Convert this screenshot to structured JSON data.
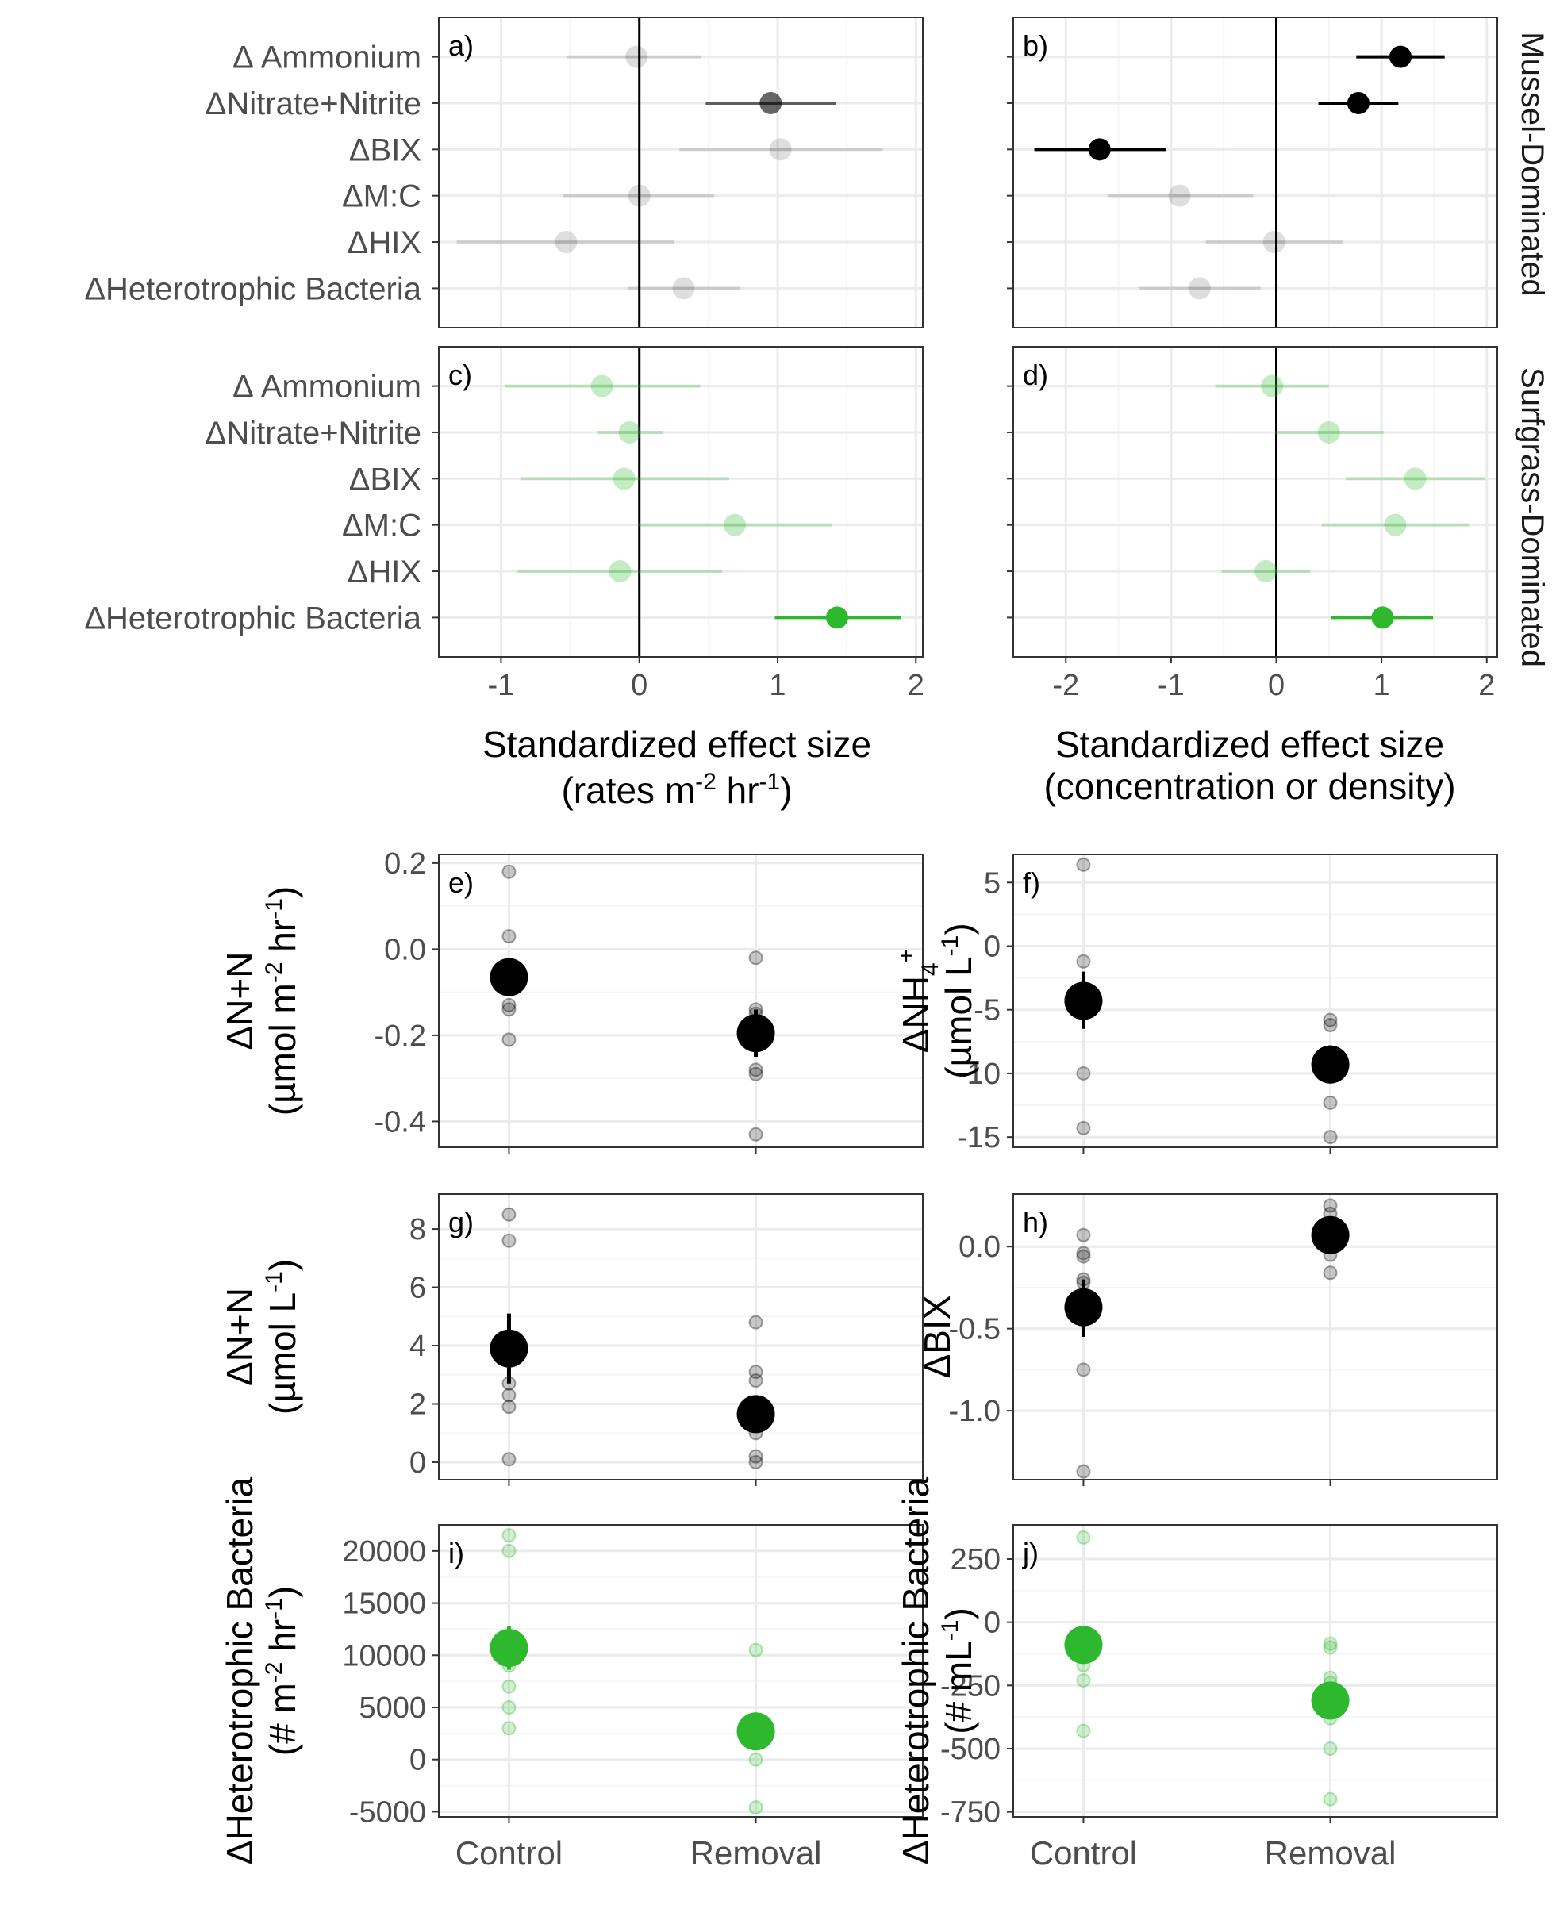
{
  "colors": {
    "mussel": "#000000",
    "surfgrass": "#2db82d",
    "axis_text": "#4d4d4d",
    "grid_major": "#ebebeb",
    "grid_minor": "#f5f5f5"
  },
  "strip_labels": [
    "Mussel-Dominated",
    "Surfgrass-Dominated"
  ],
  "forest_xlabels": {
    "left": {
      "line1": "Standardized effect size",
      "line2_pre": "(rates m",
      "sup1": "-2",
      "mid": " hr",
      "sup2": "-1",
      "post": ")"
    },
    "right": {
      "line1": "Standardized effect size",
      "line2": "(concentration or density)"
    }
  },
  "treatment_labels": [
    "Control",
    "Removal"
  ],
  "chart_data": [
    {
      "panel": "a)",
      "type": "scatter",
      "kind": "forest",
      "group": "Mussel-Dominated",
      "categories": [
        "Δ Ammonium",
        "ΔNitrate+Nitrite",
        "ΔBIX",
        "ΔM:C",
        "ΔHIX",
        "ΔHeterotrophic Bacteria"
      ],
      "xlim": [
        -1.45,
        2.05
      ],
      "xticks": [
        -1,
        0,
        1,
        2
      ],
      "values": [
        -0.02,
        0.95,
        1.02,
        0.0,
        -0.53,
        0.32
      ],
      "ci_low": [
        -0.52,
        0.48,
        0.29,
        -0.55,
        -1.32,
        -0.08
      ],
      "ci_high": [
        0.45,
        1.42,
        1.76,
        0.54,
        0.25,
        0.73
      ],
      "significant": [
        false,
        true,
        false,
        false,
        false,
        false
      ],
      "strength": [
        0.13,
        0.6,
        0.13,
        0.13,
        0.13,
        0.13
      ]
    },
    {
      "panel": "b)",
      "type": "scatter",
      "kind": "forest",
      "group": "Mussel-Dominated",
      "categories": [
        "Δ Ammonium",
        "ΔNitrate+Nitrite",
        "ΔBIX",
        "ΔM:C",
        "ΔHIX",
        "ΔHeterotrophic Bacteria"
      ],
      "xlim": [
        -2.5,
        2.1
      ],
      "xticks": [
        -2,
        -1,
        0,
        1,
        2
      ],
      "values": [
        1.18,
        0.78,
        -1.68,
        -0.92,
        -0.02,
        -0.73
      ],
      "ci_low": [
        0.76,
        0.4,
        -2.3,
        -1.6,
        -0.67,
        -1.3
      ],
      "ci_high": [
        1.6,
        1.16,
        -1.05,
        -0.22,
        0.63,
        -0.15
      ],
      "significant": [
        true,
        true,
        true,
        false,
        false,
        false
      ],
      "strength": [
        1,
        1,
        1,
        0.13,
        0.13,
        0.13
      ]
    },
    {
      "panel": "c)",
      "type": "scatter",
      "kind": "forest",
      "group": "Surfgrass-Dominated",
      "categories": [
        "Δ Ammonium",
        "ΔNitrate+Nitrite",
        "ΔBIX",
        "ΔM:C",
        "ΔHIX",
        "ΔHeterotrophic Bacteria"
      ],
      "xlim": [
        -1.45,
        2.05
      ],
      "xticks": [
        -1,
        0,
        1,
        2
      ],
      "values": [
        -0.27,
        -0.07,
        -0.11,
        0.69,
        -0.14,
        1.43
      ],
      "ci_low": [
        -0.97,
        -0.3,
        -0.86,
        -0.01,
        -0.88,
        0.98
      ],
      "ci_high": [
        0.44,
        0.17,
        0.65,
        1.39,
        0.6,
        1.89
      ],
      "significant": [
        false,
        false,
        false,
        false,
        false,
        true
      ],
      "strength": [
        0.28,
        0.28,
        0.28,
        0.28,
        0.28,
        1
      ]
    },
    {
      "panel": "d)",
      "type": "scatter",
      "kind": "forest",
      "group": "Surfgrass-Dominated",
      "categories": [
        "Δ Ammonium",
        "ΔNitrate+Nitrite",
        "ΔBIX",
        "ΔM:C",
        "ΔHIX",
        "ΔHeterotrophic Bacteria"
      ],
      "xlim": [
        -2.5,
        2.1
      ],
      "xticks": [
        -2,
        -1,
        0,
        1,
        2
      ],
      "values": [
        -0.04,
        0.5,
        1.32,
        1.13,
        -0.1,
        1.01
      ],
      "ci_low": [
        -0.58,
        -0.01,
        0.66,
        0.43,
        -0.52,
        0.52
      ],
      "ci_high": [
        0.5,
        1.02,
        1.98,
        1.83,
        0.32,
        1.49
      ],
      "significant": [
        false,
        false,
        false,
        false,
        false,
        true
      ],
      "strength": [
        0.28,
        0.28,
        0.28,
        0.28,
        0.28,
        1
      ]
    },
    {
      "panel": "e)",
      "type": "scatter",
      "kind": "points",
      "color": "mussel",
      "ylabel_l1": "ΔN+N",
      "ylabel_l2_pre": "(µmol m",
      "sup1": "-2",
      "mid": " hr",
      "sup2": "-1",
      "post": ")",
      "ylim": [
        -0.46,
        0.22
      ],
      "yticks": [
        0.2,
        0.0,
        -0.2,
        -0.4
      ],
      "yticklabels": [
        "0.2",
        "0.0",
        "-0.2",
        "-0.4"
      ],
      "categories": [
        "Control",
        "Removal"
      ],
      "points": [
        [
          0.18,
          0.03,
          -0.04,
          -0.05,
          -0.13,
          -0.14,
          -0.21
        ],
        [
          -0.02,
          -0.14,
          -0.15,
          -0.28,
          -0.29,
          -0.43
        ]
      ],
      "mean": [
        -0.065,
        -0.195
      ],
      "se_low": [
        -0.1,
        -0.25
      ],
      "se_high": [
        -0.03,
        -0.14
      ]
    },
    {
      "panel": "f)",
      "type": "scatter",
      "kind": "points",
      "color": "mussel",
      "ylabel_l1_pre": "ΔNH",
      "ylabel_l1_sub": "4",
      "ylabel_l1_sup": "+",
      "ylabel_l2_pre": "(µmol L",
      "sup1": "-1",
      "post": ")",
      "ylim": [
        -15.8,
        7.2
      ],
      "yticks": [
        5,
        0,
        -5,
        -10,
        -15
      ],
      "yticklabels": [
        "5",
        "0",
        "-5",
        "-10",
        "-15"
      ],
      "categories": [
        "Control",
        "Removal"
      ],
      "points": [
        [
          6.4,
          -1.2,
          -4.3,
          -10.0,
          -14.3
        ],
        [
          -5.8,
          -6.2,
          -9.3,
          -12.3,
          -15.0
        ]
      ],
      "mean": [
        -4.3,
        -9.3
      ],
      "se_low": [
        -6.5,
        -10.5
      ],
      "se_high": [
        -2.0,
        -7.8
      ]
    },
    {
      "panel": "g)",
      "type": "scatter",
      "kind": "points",
      "color": "mussel",
      "ylabel_l1": "ΔN+N",
      "ylabel_l2_pre": "(µmol L",
      "sup1": "-1",
      "post": ")",
      "ylim": [
        -0.6,
        9.2
      ],
      "yticks": [
        0,
        2,
        4,
        6,
        8
      ],
      "yticklabels": [
        "0",
        "2",
        "4",
        "6",
        "8"
      ],
      "categories": [
        "Control",
        "Removal"
      ],
      "points": [
        [
          8.5,
          7.6,
          2.7,
          2.3,
          1.9,
          0.1
        ],
        [
          4.8,
          3.1,
          2.8,
          1.0,
          0.2,
          0.0
        ]
      ],
      "mean": [
        3.9,
        1.65
      ],
      "se_low": [
        2.7,
        1.1
      ],
      "se_high": [
        5.1,
        2.2
      ]
    },
    {
      "panel": "h)",
      "type": "scatter",
      "kind": "points",
      "color": "mussel",
      "ylabel_l1": "ΔBIX",
      "ylim": [
        -1.42,
        0.32
      ],
      "yticks": [
        0.0,
        -0.5,
        -1.0
      ],
      "yticklabels": [
        "0.0",
        "-0.5",
        "-1.0"
      ],
      "categories": [
        "Control",
        "Removal"
      ],
      "points": [
        [
          0.07,
          -0.04,
          -0.06,
          -0.2,
          -0.22,
          -0.75,
          -1.37
        ],
        [
          0.25,
          0.2,
          -0.05,
          -0.16
        ]
      ],
      "mean": [
        -0.37,
        0.07
      ],
      "se_low": [
        -0.55,
        -0.02
      ],
      "se_high": [
        -0.2,
        0.15
      ]
    },
    {
      "panel": "i)",
      "type": "scatter",
      "kind": "points",
      "color": "surfgrass",
      "ylabel_l1": "ΔHeterotrophic Bacteria",
      "ylabel_l2_pre": "(# m",
      "sup1": "-2",
      "mid": " hr",
      "sup2": "-1",
      "post": ")",
      "ylim": [
        -5500,
        22500
      ],
      "yticks": [
        20000,
        15000,
        10000,
        5000,
        0,
        -5000
      ],
      "yticklabels": [
        "20000",
        "15000",
        "10000",
        "5000",
        "0",
        "-5000"
      ],
      "categories": [
        "Control",
        "Removal"
      ],
      "points": [
        [
          21500,
          20000,
          9000,
          7000,
          5000,
          3000
        ],
        [
          10500,
          3000,
          2700,
          0,
          -4600
        ]
      ],
      "mean": [
        10700,
        2700
      ],
      "se_low": [
        8600,
        1600
      ],
      "se_high": [
        12800,
        3800
      ]
    },
    {
      "panel": "j)",
      "type": "scatter",
      "kind": "points",
      "color": "surfgrass",
      "ylabel_l1": "ΔHeterotrophic Bacteria",
      "ylabel_l2_pre": "(# mL",
      "sup1": "-1",
      "post": ")",
      "ylim": [
        -770,
        385
      ],
      "yticks": [
        250,
        0,
        -250,
        -500,
        -750
      ],
      "yticklabels": [
        "250",
        "0",
        "-250",
        "-500",
        "-750"
      ],
      "categories": [
        "Control",
        "Removal"
      ],
      "points": [
        [
          335,
          -170,
          -230,
          -430
        ],
        [
          -85,
          -100,
          -220,
          -240,
          -380,
          -500,
          -700
        ]
      ],
      "mean": [
        -90,
        -310
      ],
      "se_low": [
        -130,
        -355
      ],
      "se_high": [
        -50,
        -265
      ]
    }
  ]
}
